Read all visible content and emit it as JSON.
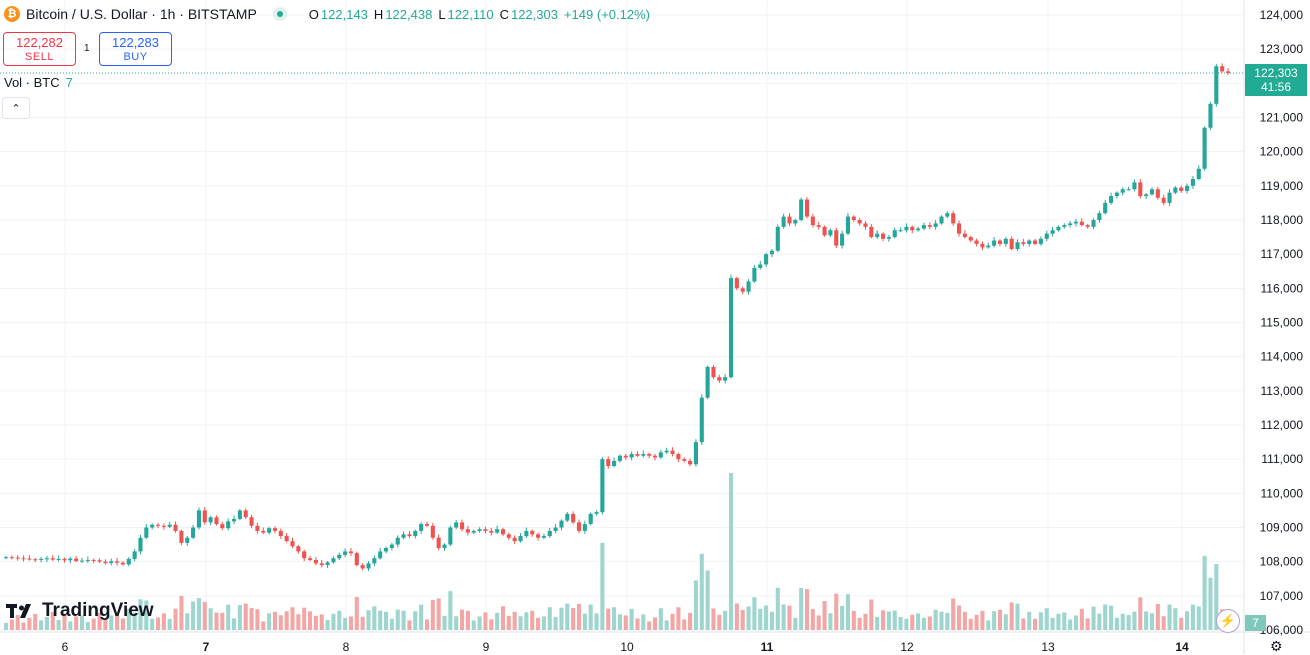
{
  "header": {
    "symbol_title": "Bitcoin / U.S. Dollar · 1h · BITSTAMP",
    "coin_icon": "bitcoin-icon",
    "status_color": "#22ab94",
    "ohlc": {
      "o_label": "O",
      "o": "122,143",
      "h_label": "H",
      "h": "122,438",
      "l_label": "L",
      "l": "122,110",
      "c_label": "C",
      "c": "122,303",
      "change": "+149 (+0.12%)"
    }
  },
  "trade": {
    "sell_price": "122,282",
    "sell_label": "SELL",
    "spread": "1",
    "buy_price": "122,283",
    "buy_label": "BUY"
  },
  "volume_legend": {
    "label": "Vol · BTC",
    "value": "7"
  },
  "collapse_icon": "chevron-up-icon",
  "last_price": {
    "price": "122,303",
    "countdown": "41:56"
  },
  "volume_last": "7",
  "branding": "TradingView",
  "colors": {
    "up": "#26a69a",
    "down": "#ef5350",
    "up_vol": "#9ed6cf",
    "down_vol": "#f2a7a6",
    "grid": "#f0f3fa"
  },
  "chart_data": {
    "type": "candlestick",
    "interval": "1h",
    "y_axis": {
      "min": 106000,
      "max": 124000,
      "tick_labels": [
        "124,000",
        "123,000",
        "122,000",
        "121,000",
        "120,000",
        "119,000",
        "118,000",
        "117,000",
        "116,000",
        "115,000",
        "114,000",
        "113,000",
        "112,000",
        "111,000",
        "110,000",
        "109,000",
        "108,000",
        "107,000",
        "106,000"
      ]
    },
    "x_axis": {
      "tick_labels": [
        "6",
        "7",
        "8",
        "9",
        "10",
        "11",
        "12",
        "13",
        "14"
      ],
      "bold_labels": [
        "7",
        "11",
        "14"
      ]
    },
    "grid": true,
    "series": [
      {
        "name": "Price",
        "close": [
          108130,
          108120,
          108100,
          108090,
          108070,
          108050,
          108080,
          108100,
          108060,
          108080,
          108040,
          108090,
          108020,
          108030,
          108050,
          108040,
          108000,
          107960,
          108010,
          107970,
          107920,
          108080,
          108300,
          108700,
          109000,
          109080,
          109050,
          109020,
          109080,
          108900,
          108550,
          108700,
          109000,
          109500,
          109150,
          109300,
          109100,
          108980,
          109180,
          109250,
          109500,
          109300,
          109050,
          108900,
          108850,
          108980,
          108900,
          108750,
          108600,
          108450,
          108300,
          108100,
          108050,
          107950,
          107900,
          107980,
          108100,
          108200,
          108300,
          108250,
          107900,
          107800,
          107950,
          108100,
          108300,
          108400,
          108500,
          108700,
          108800,
          108750,
          108900,
          109100,
          109050,
          108700,
          108400,
          108500,
          109000,
          109150,
          108950,
          108850,
          108900,
          108950,
          108900,
          108850,
          108950,
          108800,
          108700,
          108600,
          108750,
          108900,
          108800,
          108700,
          108750,
          108900,
          109000,
          109200,
          109400,
          109150,
          108900,
          109100,
          109400,
          109450,
          111000,
          110800,
          110950,
          111100,
          111050,
          111150,
          111100,
          111150,
          111100,
          111050,
          111200,
          111250,
          111150,
          111000,
          110950,
          110850,
          111500,
          112800,
          113700,
          113400,
          113300,
          113400,
          116300,
          116000,
          115900,
          116200,
          116600,
          116700,
          117000,
          117100,
          117800,
          118100,
          117900,
          118000,
          118600,
          118100,
          117850,
          117800,
          117550,
          117700,
          117250,
          117600,
          118100,
          118000,
          117900,
          117800,
          117500,
          117600,
          117450,
          117500,
          117700,
          117700,
          117800,
          117700,
          117750,
          117850,
          117800,
          117900,
          118100,
          118200,
          117900,
          117600,
          117500,
          117400,
          117300,
          117200,
          117250,
          117400,
          117300,
          117450,
          117150,
          117350,
          117300,
          117400,
          117300,
          117450,
          117600,
          117700,
          117800,
          117850,
          117900,
          117950,
          117850,
          117800,
          118000,
          118200,
          118500,
          118700,
          118800,
          118900,
          118900,
          119100,
          118700,
          118750,
          118900,
          118650,
          118500,
          118800,
          118950,
          118850,
          119000,
          119200,
          119500,
          120700,
          121400,
          122500,
          122350,
          122303
        ]
      }
    ]
  }
}
